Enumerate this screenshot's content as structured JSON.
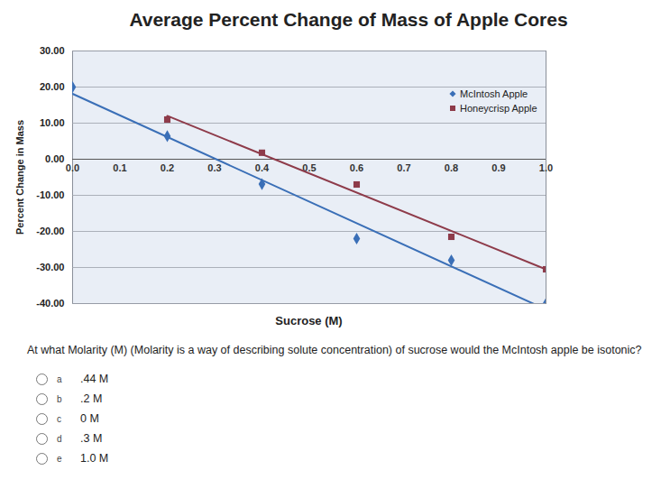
{
  "chart_data": {
    "type": "scatter",
    "title": "Average Percent Change of Mass of Apple Cores",
    "x_label": "Sucrose (M)",
    "y_label": "Percent Change in Mass",
    "x": [
      0.0,
      0.2,
      0.4,
      0.6,
      0.8,
      1.0
    ],
    "series": [
      {
        "name": "McIntosh Apple",
        "color": "#3a6fb7",
        "marker": "diamond",
        "values": [
          20.0,
          6.4,
          -6.9,
          -22.0,
          -28.0,
          -40.0
        ]
      },
      {
        "name": "Honeycrisp Apple",
        "color": "#8e3b4a",
        "marker": "square",
        "values": [
          null,
          11.0,
          1.8,
          -7.0,
          -21.5,
          -30.5
        ]
      }
    ],
    "xlim": [
      0,
      1
    ],
    "xticks": [
      {
        "value": 0,
        "label": "0.0"
      },
      0.1,
      0.2,
      0.3,
      0.4,
      0.5,
      0.6,
      0.7,
      0.8,
      0.9,
      {
        "value": 1,
        "label": "1.0"
      }
    ],
    "ylim": [
      -40,
      30
    ],
    "yticks": [
      {
        "value": -40,
        "label": "-40.00"
      },
      {
        "value": -30,
        "label": "-30.00"
      },
      {
        "value": -20,
        "label": "-20.00"
      },
      {
        "value": -10,
        "label": "-10.00"
      },
      {
        "value": 0,
        "label": "0.00"
      },
      {
        "value": 10,
        "label": "10.00"
      },
      {
        "value": 20,
        "label": "20.00"
      },
      {
        "value": 30,
        "label": "30.00"
      }
    ],
    "grid": true,
    "legend": "top-right"
  },
  "question": "At what Molarity (M) (Molarity is a way of describing solute concentration) of sucrose would the McIntosh apple be isotonic?",
  "options": [
    {
      "letter": "a",
      "text": ".44 M"
    },
    {
      "letter": "b",
      "text": ".2 M"
    },
    {
      "letter": "c",
      "text": "0 M"
    },
    {
      "letter": "d",
      "text": ".3 M"
    },
    {
      "letter": "e",
      "text": "1.0 M"
    }
  ]
}
